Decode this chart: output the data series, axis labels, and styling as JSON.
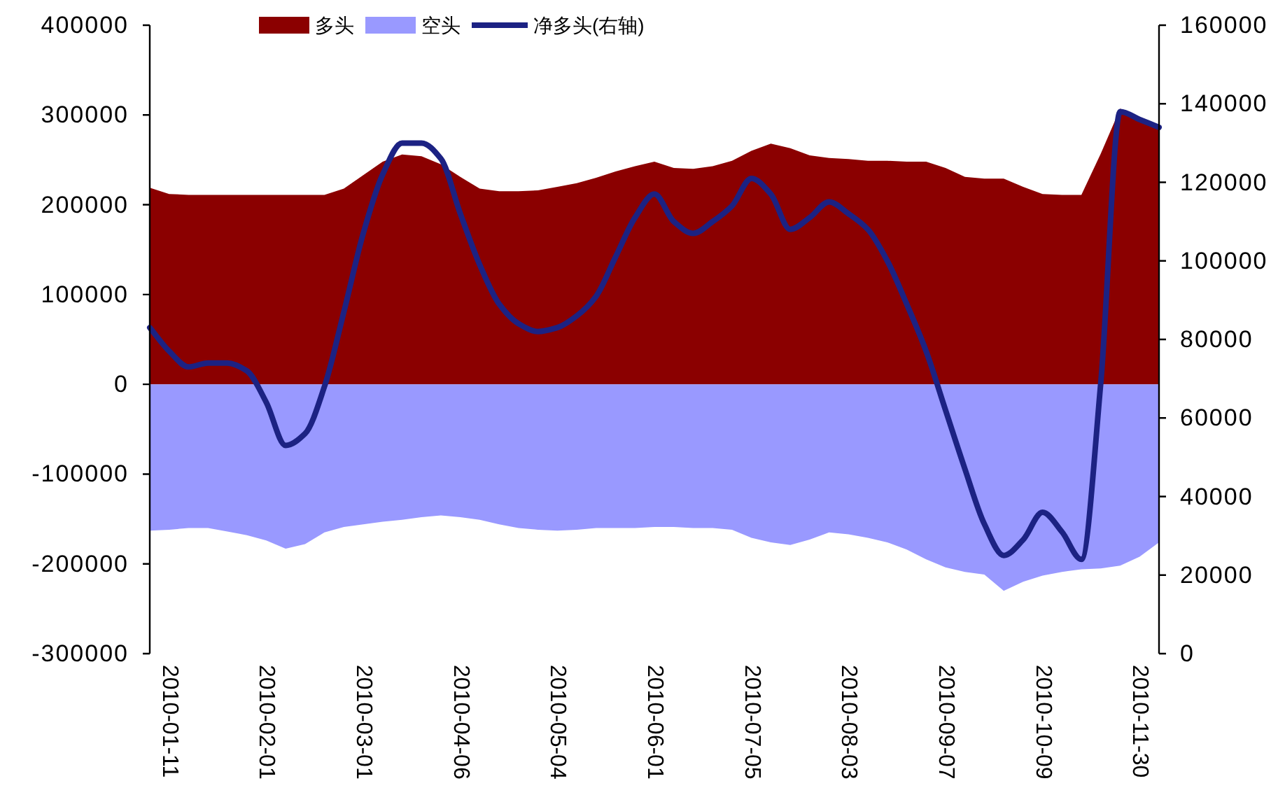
{
  "chart_data": {
    "type": "area",
    "categories": [
      null,
      "2010-01-11",
      null,
      null,
      null,
      null,
      "2010-02-01",
      null,
      null,
      null,
      null,
      "2010-03-01",
      null,
      null,
      null,
      null,
      "2010-04-06",
      null,
      null,
      null,
      null,
      "2010-05-04",
      null,
      null,
      null,
      null,
      "2010-06-01",
      null,
      null,
      null,
      null,
      "2010-07-05",
      null,
      null,
      null,
      null,
      "2010-08-03",
      null,
      null,
      null,
      null,
      "2010-09-07",
      null,
      null,
      null,
      null,
      "2010-10-09",
      null,
      null,
      null,
      null,
      "2010-11-30",
      null
    ],
    "series": [
      {
        "name": "多头",
        "type": "area",
        "color": "#8b0000",
        "values": [
          219000,
          212000,
          211000,
          211000,
          211000,
          211000,
          211000,
          211000,
          211000,
          211000,
          218000,
          233000,
          248000,
          256000,
          254000,
          245000,
          231000,
          218000,
          215000,
          215000,
          216000,
          220000,
          224000,
          230000,
          237000,
          243000,
          248000,
          241000,
          240000,
          243000,
          249000,
          260000,
          268000,
          263000,
          255000,
          252000,
          251000,
          249000,
          249000,
          248000,
          248000,
          241000,
          231000,
          229000,
          229000,
          220000,
          212000,
          211000,
          211000,
          257000,
          307000,
          297000,
          288000
        ]
      },
      {
        "name": "空头",
        "type": "area",
        "color": "#9999ff",
        "values": [
          -163000,
          -162000,
          -160000,
          -160000,
          -164000,
          -168000,
          -174000,
          -183000,
          -178000,
          -165000,
          -159000,
          -156000,
          -153000,
          -151000,
          -148000,
          -146000,
          -148000,
          -151000,
          -156000,
          -160000,
          -162000,
          -163000,
          -162000,
          -160000,
          -160000,
          -160000,
          -159000,
          -159000,
          -160000,
          -160000,
          -162000,
          -171000,
          -176000,
          -179000,
          -173000,
          -165000,
          -167000,
          -171000,
          -176000,
          -184000,
          -195000,
          -204000,
          -209000,
          -212000,
          -230000,
          -220000,
          -213000,
          -209000,
          -206000,
          -205000,
          -202000,
          -192000,
          -176000
        ]
      },
      {
        "name": "净多头(右轴)",
        "type": "line",
        "axis": "y2",
        "color": "#1c2283",
        "values": [
          83000,
          77000,
          73000,
          74000,
          74000,
          72000,
          64000,
          53000,
          56000,
          68000,
          87000,
          107000,
          122000,
          130000,
          130000,
          126000,
          112000,
          99000,
          89000,
          84000,
          82000,
          83000,
          86000,
          91000,
          101000,
          111000,
          117000,
          110000,
          107000,
          110000,
          114000,
          121000,
          117000,
          108000,
          111000,
          115000,
          112000,
          108000,
          100000,
          89000,
          77000,
          62000,
          47000,
          33000,
          25000,
          29000,
          36000,
          31000,
          24000,
          69000,
          138000,
          136000,
          134000
        ]
      }
    ],
    "ylim": [
      -300000,
      400000
    ],
    "yticks": [
      -300000,
      -200000,
      -100000,
      0,
      100000,
      200000,
      300000,
      400000
    ],
    "y2lim": [
      0,
      160000
    ],
    "y2ticks": [
      0,
      20000,
      40000,
      60000,
      80000,
      100000,
      120000,
      140000,
      160000
    ],
    "legend": "top"
  }
}
